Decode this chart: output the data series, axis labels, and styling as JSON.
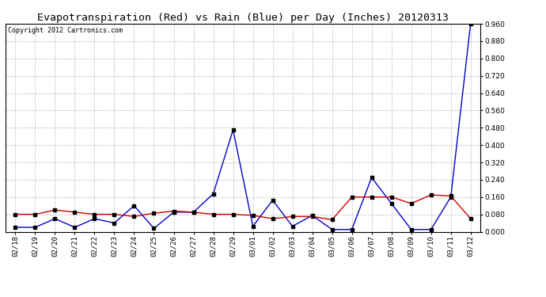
{
  "title": "Evapotranspiration (Red) vs Rain (Blue) per Day (Inches) 20120313",
  "copyright": "Copyright 2012 Cartronics.com",
  "labels": [
    "02/18",
    "02/19",
    "02/20",
    "02/21",
    "02/22",
    "02/23",
    "02/24",
    "02/25",
    "02/26",
    "02/27",
    "02/28",
    "02/29",
    "03/01",
    "03/02",
    "03/03",
    "03/04",
    "03/05",
    "03/06",
    "03/07",
    "03/08",
    "03/09",
    "03/10",
    "03/11",
    "03/12"
  ],
  "red_values": [
    0.08,
    0.08,
    0.1,
    0.09,
    0.08,
    0.08,
    0.07,
    0.085,
    0.095,
    0.09,
    0.08,
    0.08,
    0.075,
    0.06,
    0.07,
    0.07,
    0.055,
    0.16,
    0.16,
    0.16,
    0.13,
    0.17,
    0.165,
    0.06
  ],
  "blue_values": [
    0.02,
    0.02,
    0.06,
    0.02,
    0.06,
    0.04,
    0.12,
    0.015,
    0.09,
    0.09,
    0.175,
    0.47,
    0.025,
    0.145,
    0.025,
    0.075,
    0.01,
    0.01,
    0.25,
    0.13,
    0.01,
    0.01,
    0.16,
    0.96
  ],
  "ylim": [
    0.0,
    0.9601
  ],
  "yticks": [
    0.0,
    0.08,
    0.16,
    0.24,
    0.32,
    0.4,
    0.48,
    0.56,
    0.64,
    0.72,
    0.8,
    0.88,
    0.96
  ],
  "red_color": "#cc0000",
  "blue_color": "#0000cc",
  "marker_color": "#000000",
  "bg_color": "#ffffff",
  "grid_color": "#bbbbbb",
  "title_fontsize": 9.5,
  "copyright_fontsize": 6,
  "tick_fontsize": 6.5
}
